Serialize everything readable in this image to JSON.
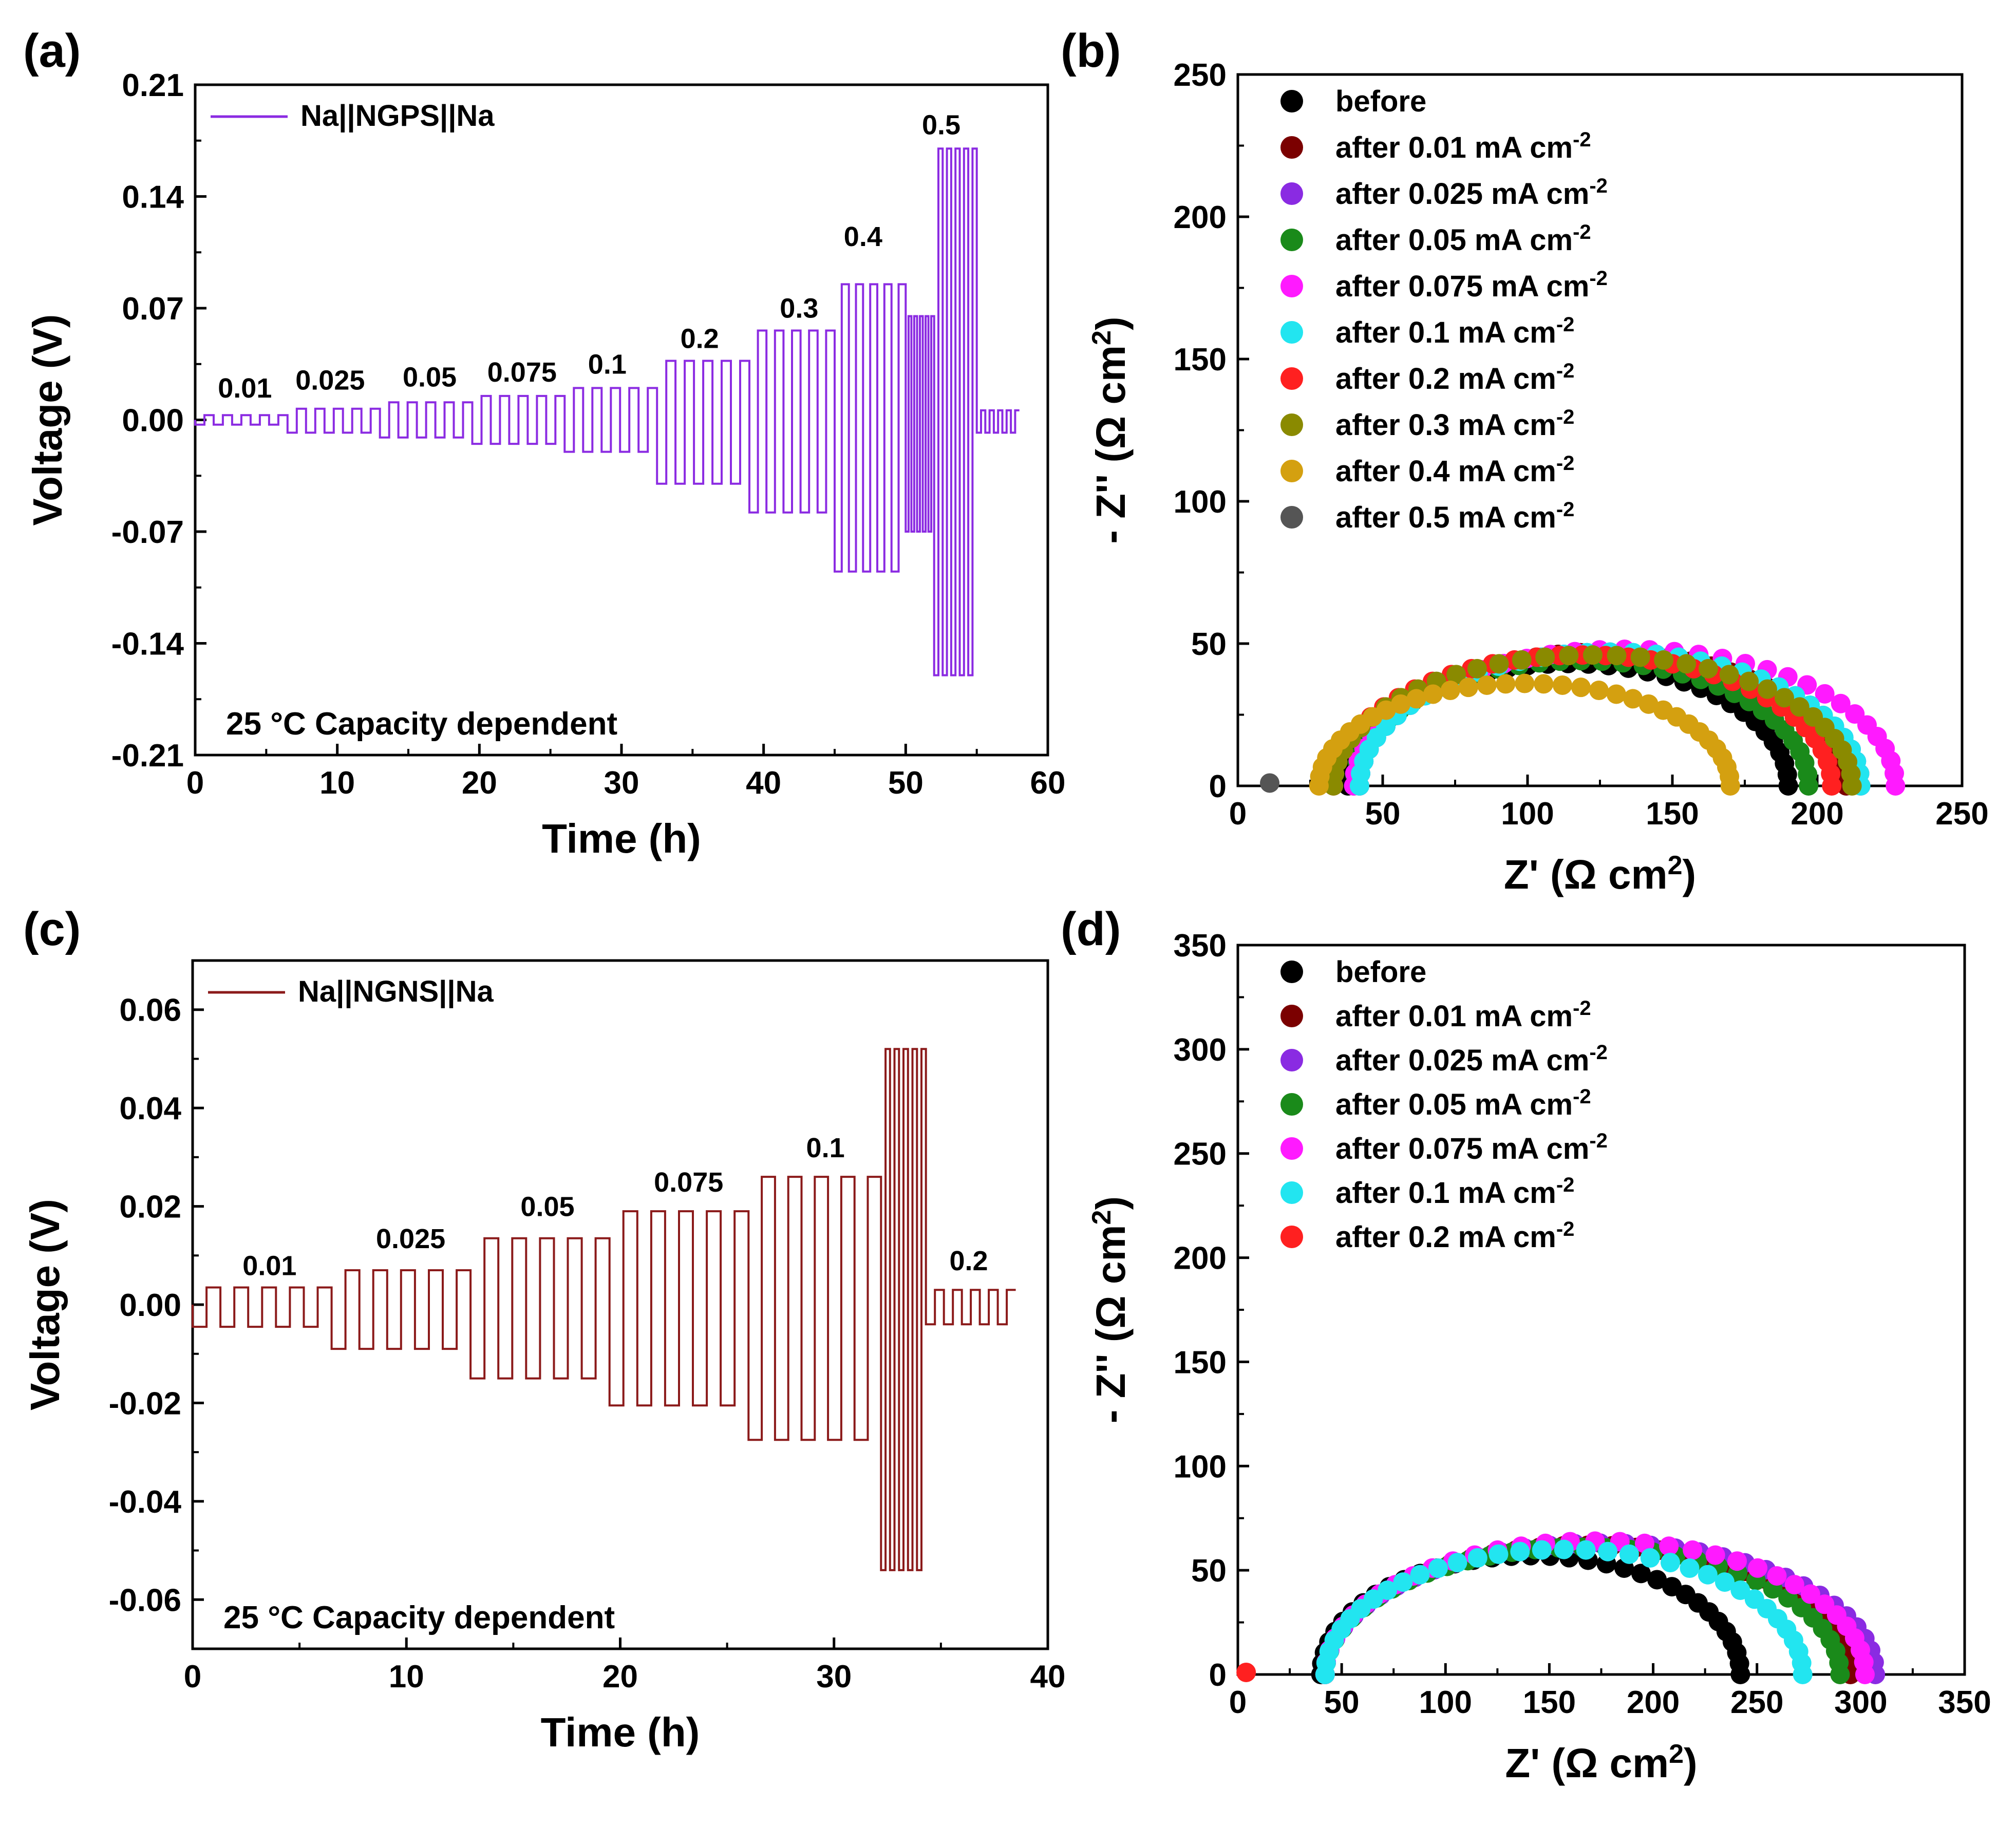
{
  "panels": [
    {
      "letter": "(a)",
      "chart_data": {
        "type": "line",
        "xlabel": "Time (h)",
        "ylabel": "Voltage (V)",
        "xlim": [
          0,
          60
        ],
        "ylim": [
          -0.21,
          0.21
        ],
        "xticks": [
          0,
          10,
          20,
          30,
          40,
          50,
          60
        ],
        "yticks": [
          -0.21,
          -0.14,
          -0.07,
          0.0,
          0.07,
          0.14,
          0.21
        ],
        "ytick_labels": [
          "-0.21",
          "-0.14",
          "-0.07",
          "0.00",
          "0.07",
          "0.14",
          "0.21"
        ],
        "legend": "Na||NGPS||Na",
        "legend_position": "top-left",
        "color": "#8b2be2",
        "note": "25 °C  Capacity dependent",
        "step_annotations": [
          {
            "label": "0.01",
            "x": 3.5,
            "y": 0.014
          },
          {
            "label": "0.025",
            "x": 9.5,
            "y": 0.019
          },
          {
            "label": "0.05",
            "x": 16.5,
            "y": 0.021
          },
          {
            "label": "0.075",
            "x": 23,
            "y": 0.024
          },
          {
            "label": "0.1",
            "x": 29,
            "y": 0.029
          },
          {
            "label": "0.2",
            "x": 35.5,
            "y": 0.045
          },
          {
            "label": "0.3",
            "x": 42.5,
            "y": 0.064
          },
          {
            "label": "0.4",
            "x": 47,
            "y": 0.109
          },
          {
            "label": "0.5",
            "x": 52.5,
            "y": 0.179
          }
        ],
        "series": [
          {
            "segments": [
              {
                "t0": 0,
                "t1": 6.5,
                "hi": 0.003,
                "lo": -0.003
              },
              {
                "t0": 6.5,
                "t1": 13,
                "hi": 0.007,
                "lo": -0.008
              },
              {
                "t0": 13,
                "t1": 19.5,
                "hi": 0.011,
                "lo": -0.011
              },
              {
                "t0": 19.5,
                "t1": 26,
                "hi": 0.015,
                "lo": -0.015
              },
              {
                "t0": 26,
                "t1": 32.5,
                "hi": 0.02,
                "lo": -0.02
              },
              {
                "t0": 32.5,
                "t1": 39,
                "hi": 0.037,
                "lo": -0.04
              },
              {
                "t0": 39,
                "t1": 45,
                "hi": 0.056,
                "lo": -0.058
              },
              {
                "t0": 45,
                "t1": 50,
                "hi": 0.085,
                "lo": -0.095
              },
              {
                "t0": 50,
                "t1": 52,
                "hi": 0.065,
                "lo": -0.07
              },
              {
                "t0": 52,
                "t1": 55,
                "hi": 0.17,
                "lo": -0.16
              },
              {
                "t0": 55,
                "t1": 58,
                "hi": 0.006,
                "lo": -0.008
              }
            ]
          }
        ]
      }
    },
    {
      "letter": "(b)",
      "chart_data": {
        "type": "scatter",
        "xlabel": "Z' (Ω cm²)",
        "ylabel": "- Z'' (Ω cm²)",
        "xlim": [
          0,
          250
        ],
        "ylim": [
          0,
          250
        ],
        "xticks": [
          0,
          50,
          100,
          150,
          200,
          250
        ],
        "yticks": [
          0,
          50,
          100,
          150,
          200,
          250
        ],
        "legend_position": "top-left",
        "series": [
          {
            "name": "before",
            "color": "#000000",
            "r0": 38,
            "r1": 190,
            "peak": 43
          },
          {
            "name": "after 0.01 mA cm-2",
            "color": "#7b0000",
            "r0": 42,
            "r1": 210,
            "peak": 47
          },
          {
            "name": "after 0.025 mA cm-2",
            "color": "#8a2be2",
            "r0": 42,
            "r1": 215,
            "peak": 47
          },
          {
            "name": "after 0.05 mA cm-2",
            "color": "#1a8a1a",
            "r0": 40,
            "r1": 197,
            "peak": 44
          },
          {
            "name": "after 0.075 mA cm-2",
            "color": "#ff1aff",
            "r0": 40,
            "r1": 227,
            "peak": 48
          },
          {
            "name": "after 0.1 mA cm-2",
            "color": "#22e5f0",
            "r0": 42,
            "r1": 215,
            "peak": 47
          },
          {
            "name": "after 0.2 mA cm-2",
            "color": "#ff2020",
            "r0": 33,
            "r1": 205,
            "peak": 46
          },
          {
            "name": "after 0.3 mA cm-2",
            "color": "#8a8a00",
            "r0": 33,
            "r1": 212,
            "peak": 46
          },
          {
            "name": "after 0.4 mA cm-2",
            "color": "#d4a010",
            "r0": 28,
            "r1": 170,
            "peak": 36
          },
          {
            "name": "after 0.5 mA cm-2",
            "color": "#555555",
            "points": [
              [
                11,
                1
              ]
            ]
          }
        ]
      }
    },
    {
      "letter": "(c)",
      "chart_data": {
        "type": "line",
        "xlabel": "Time (h)",
        "ylabel": "Voltage (V)",
        "xlim": [
          0,
          40
        ],
        "ylim": [
          -0.07,
          0.07
        ],
        "xticks": [
          0,
          10,
          20,
          30,
          40
        ],
        "yticks": [
          -0.06,
          -0.04,
          -0.02,
          0.0,
          0.02,
          0.04,
          0.06
        ],
        "ytick_labels": [
          "-0.06",
          "-0.04",
          "-0.02",
          "0.00",
          "0.02",
          "0.04",
          "0.06"
        ],
        "legend": "Na||NGNS||Na",
        "legend_position": "top-left",
        "color": "#8b1a1a",
        "note": "25 °C  Capacity dependent",
        "step_annotations": [
          {
            "label": "0.01",
            "x": 3.6,
            "y": 0.006
          },
          {
            "label": "0.025",
            "x": 10.2,
            "y": 0.0115
          },
          {
            "label": "0.05",
            "x": 16.6,
            "y": 0.018
          },
          {
            "label": "0.075",
            "x": 23.2,
            "y": 0.023
          },
          {
            "label": "0.1",
            "x": 29.6,
            "y": 0.03
          },
          {
            "label": "0.2",
            "x": 36.3,
            "y": 0.007
          }
        ],
        "series": [
          {
            "segments": [
              {
                "t0": 0,
                "t1": 6.5,
                "hi": 0.0035,
                "lo": -0.0045
              },
              {
                "t0": 6.5,
                "t1": 13,
                "hi": 0.007,
                "lo": -0.009
              },
              {
                "t0": 13,
                "t1": 19.5,
                "hi": 0.0135,
                "lo": -0.015
              },
              {
                "t0": 19.5,
                "t1": 26,
                "hi": 0.019,
                "lo": -0.0205
              },
              {
                "t0": 26,
                "t1": 32.2,
                "hi": 0.026,
                "lo": -0.0275
              },
              {
                "t0": 32.2,
                "t1": 34.3,
                "hi": 0.052,
                "lo": -0.054
              },
              {
                "t0": 34.3,
                "t1": 38.5,
                "hi": 0.003,
                "lo": -0.004
              }
            ]
          }
        ]
      }
    },
    {
      "letter": "(d)",
      "chart_data": {
        "type": "scatter",
        "xlabel": "Z' (Ω cm²)",
        "ylabel": "- Z'' (Ω cm²)",
        "xlim": [
          0,
          350
        ],
        "ylim": [
          0,
          350
        ],
        "xticks": [
          0,
          50,
          100,
          150,
          200,
          250,
          300,
          350
        ],
        "yticks": [
          0,
          50,
          100,
          150,
          200,
          250,
          300,
          350
        ],
        "legend_position": "top-left",
        "series": [
          {
            "name": "before",
            "color": "#000000",
            "r0": 40,
            "r1": 242,
            "peak": 57
          },
          {
            "name": "after 0.01 mA cm-2",
            "color": "#7b0000",
            "r0": 42,
            "r1": 295,
            "peak": 62
          },
          {
            "name": "after 0.025 mA cm-2",
            "color": "#8a2be2",
            "r0": 42,
            "r1": 307,
            "peak": 63
          },
          {
            "name": "after 0.05 mA cm-2",
            "color": "#1a8a1a",
            "r0": 42,
            "r1": 290,
            "peak": 61
          },
          {
            "name": "after 0.075 mA cm-2",
            "color": "#ff1aff",
            "r0": 42,
            "r1": 302,
            "peak": 64
          },
          {
            "name": "after 0.1 mA cm-2",
            "color": "#22e5f0",
            "r0": 42,
            "r1": 272,
            "peak": 60
          },
          {
            "name": "after 0.2 mA cm-2",
            "color": "#ff2020",
            "points": [
              [
                4,
                1
              ]
            ]
          }
        ]
      }
    }
  ]
}
